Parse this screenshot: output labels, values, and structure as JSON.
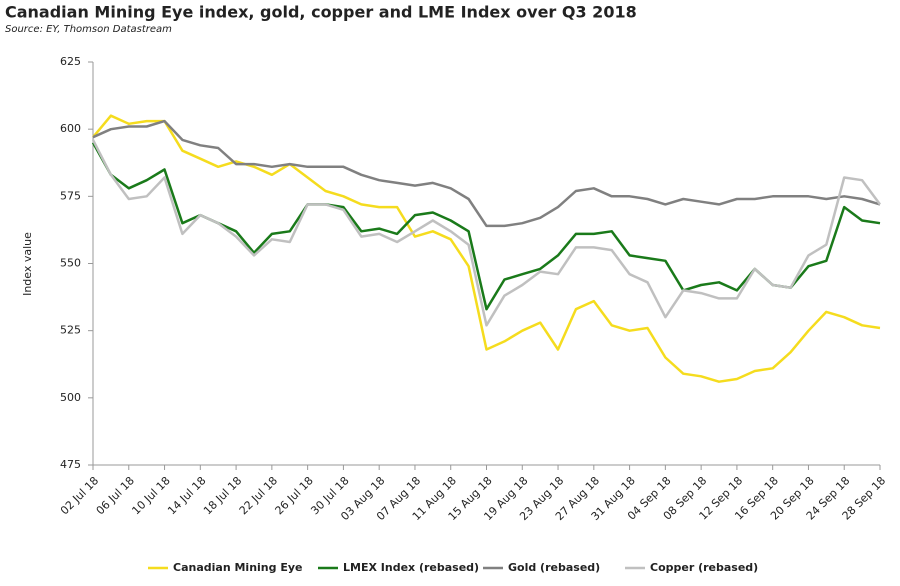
{
  "chart_data": {
    "type": "line",
    "title": "Canadian Mining Eye index, gold, copper and LME Index over Q3 2018",
    "subtitle": "Source: EY, Thomson Datastream",
    "y_label": "Index value",
    "categories": [
      "02 Jul 18",
      null,
      "06 Jul 18",
      null,
      "10 Jul 18",
      null,
      "14 Jul 18",
      null,
      "18 Jul 18",
      null,
      "22 Jul 18",
      null,
      "26 Jul 18",
      null,
      "30 Jul 18",
      null,
      "03 Aug 18",
      null,
      "07 Aug 18",
      null,
      "11 Aug 18",
      null,
      "15 Aug 18",
      null,
      "19 Aug 18",
      null,
      "23 Aug 18",
      null,
      "27 Aug 18",
      null,
      "31 Aug 18",
      null,
      "04 Sep 18",
      null,
      "08 Sep 18",
      null,
      "12 Sep 18",
      null,
      "16 Sep 18",
      null,
      "20 Sep 18",
      null,
      "24 Sep 18",
      null,
      "28 Sep 18"
    ],
    "series": [
      {
        "name": "Canadian Mining Eye",
        "color": "#f5dc1e",
        "values": [
          597,
          605,
          602,
          603,
          603,
          592,
          589,
          586,
          588,
          586,
          583,
          587,
          582,
          577,
          575,
          572,
          571,
          571,
          560,
          562,
          559,
          549,
          518,
          521,
          525,
          528,
          518,
          533,
          536,
          527,
          525,
          526,
          515,
          509,
          508,
          506,
          507,
          510,
          511,
          517,
          525,
          532,
          530,
          527,
          526
        ]
      },
      {
        "name": "LMEX Index (rebased)",
        "color": "#1a7a1a",
        "values": [
          595,
          583,
          578,
          581,
          585,
          565,
          568,
          565,
          562,
          554,
          561,
          562,
          572,
          572,
          571,
          562,
          563,
          561,
          568,
          569,
          566,
          562,
          533,
          544,
          546,
          548,
          553,
          561,
          561,
          562,
          553,
          552,
          551,
          540,
          542,
          543,
          540,
          548,
          542,
          541,
          549,
          551,
          571,
          566,
          565
        ]
      },
      {
        "name": "Gold (rebased)",
        "color": "#808080",
        "values": [
          597,
          600,
          601,
          601,
          603,
          596,
          594,
          593,
          587,
          587,
          586,
          587,
          586,
          586,
          586,
          583,
          581,
          580,
          579,
          580,
          578,
          574,
          564,
          564,
          565,
          567,
          571,
          577,
          578,
          575,
          575,
          574,
          572,
          574,
          573,
          572,
          574,
          574,
          575,
          575,
          575,
          574,
          575,
          574,
          572
        ]
      },
      {
        "name": "Copper (rebased)",
        "color": "#c0c0c0",
        "values": [
          596,
          583,
          574,
          575,
          582,
          561,
          568,
          565,
          560,
          553,
          559,
          558,
          572,
          572,
          570,
          560,
          561,
          558,
          562,
          566,
          562,
          557,
          527,
          538,
          542,
          547,
          546,
          556,
          556,
          555,
          546,
          543,
          530,
          540,
          539,
          537,
          537,
          548,
          542,
          541,
          553,
          557,
          582,
          581,
          572
        ]
      }
    ],
    "ylim": [
      475,
      625
    ],
    "yticks": [
      475,
      500,
      525,
      550,
      575,
      600,
      625
    ],
    "grid": false,
    "legend": "bottom"
  }
}
